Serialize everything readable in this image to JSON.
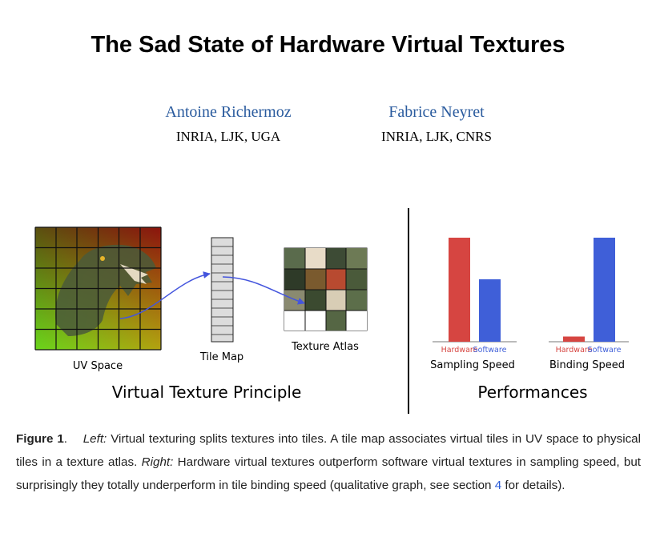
{
  "title": "The Sad State of Hardware Virtual Textures",
  "authors": [
    {
      "name": "Antoine Richermoz",
      "affiliation": "INRIA, LJK, UGA"
    },
    {
      "name": "Fabrice Neyret",
      "affiliation": "INRIA, LJK, CNRS"
    }
  ],
  "figure": {
    "left": {
      "uv_space_label": "UV Space",
      "tile_map_label": "Tile Map",
      "texture_atlas_label": "Texture Atlas",
      "subtitle": "Virtual Texture Principle"
    },
    "right": {
      "subtitle": "Performances",
      "colors": {
        "hardware": "#d64541",
        "software": "#3f5fd8"
      }
    }
  },
  "chart_data": {
    "type": "bar",
    "title": "Performances",
    "groups": [
      {
        "label": "Sampling Speed",
        "hardware_label": "Hardware",
        "software_label": "Software",
        "hardware": 1.0,
        "software": 0.6
      },
      {
        "label": "Binding Speed",
        "hardware_label": "Hardware",
        "software_label": "Software",
        "hardware": 0.05,
        "software": 1.0
      }
    ]
  },
  "caption": {
    "label": "Figure 1",
    "sep": ".",
    "left_label": "Left:",
    "left_text": " Virtual texturing splits textures into tiles. A tile map associates virtual tiles in UV space to physical tiles in a texture atlas. ",
    "right_label": "Right:",
    "right_text": " Hardware virtual textures outperform software virtual textures in sampling speed, but surprisingly they totally underperform in tile binding speed (qualitative graph, see section ",
    "ref": "4",
    "end_text": " for details)."
  }
}
